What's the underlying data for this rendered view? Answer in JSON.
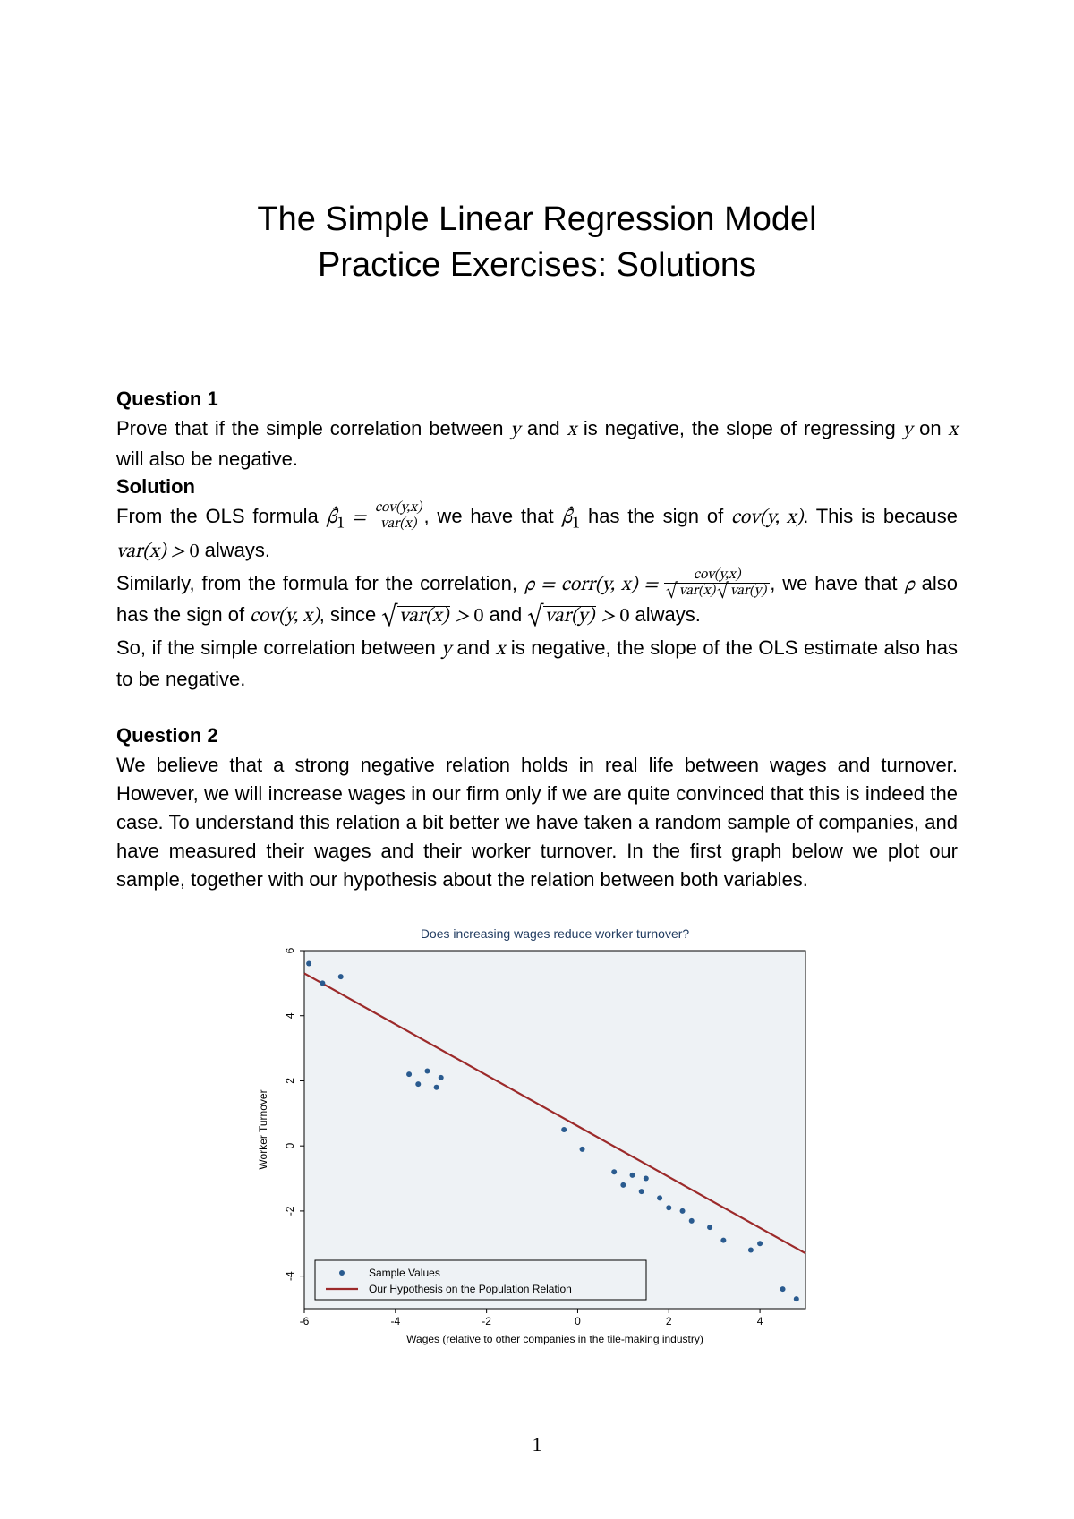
{
  "title_line1": "The Simple Linear Regression Model",
  "title_line2": "Practice Exercises: Solutions",
  "q1": {
    "heading": "Question 1",
    "prompt_a": "Prove that if the simple correlation between ",
    "prompt_b": " and ",
    "prompt_c": " is negative, the slope of regressing ",
    "prompt_d": " on ",
    "prompt_e": " will also be negative.",
    "sol_heading": "Solution",
    "s1a": "From the OLS formula ",
    "s1b": ", we have that ",
    "s1c": " has the sign of ",
    "s1d": ".  This is because ",
    "s1e": " always.",
    "s2a": "Similarly, from the formula for the correlation, ",
    "s2b": ", we have that ",
    "s2c": " also has the sign of ",
    "s2d": ", since ",
    "s2e": " and ",
    "s2f": " always.",
    "s3a": "So, if the simple correlation between ",
    "s3b": " and ",
    "s3c": " is negative, the slope of the OLS estimate also has to be negative."
  },
  "q2": {
    "heading": "Question 2",
    "text": "We believe that a strong negative relation holds in real life between wages and turnover. However, we will increase wages in our firm only if we are quite convinced that this is indeed the case. To understand this relation a bit better we have taken a random sample of companies, and have measured their wages and their worker turnover.  In the first graph below we plot our sample, together with our hypothesis about the relation between both variables."
  },
  "chart": {
    "type": "scatter+line",
    "title": "Does increasing wages reduce worker turnover?",
    "title_fontsize": 14,
    "title_color": "#1f3a5f",
    "xlabel": "Wages (relative to other companies in the tile-making industry)",
    "ylabel": "Worker Turnover",
    "label_fontsize": 12,
    "xlim": [
      -6,
      5
    ],
    "ylim": [
      -5,
      6
    ],
    "xticks": [
      -6,
      -4,
      -2,
      0,
      2,
      4
    ],
    "yticks": [
      -4,
      -2,
      0,
      2,
      4,
      6
    ],
    "plot_bg": "#eef2f5",
    "outer_bg": "#ffffff",
    "border_color": "#000000",
    "point_color": "#2a5b8f",
    "point_radius": 3,
    "line_color": "#9c2a2a",
    "line_width": 2.2,
    "line_start": [
      -6,
      5.3
    ],
    "line_end": [
      5,
      -3.3
    ],
    "points": [
      [
        -5.9,
        5.6
      ],
      [
        -5.6,
        5.0
      ],
      [
        -5.2,
        5.2
      ],
      [
        -3.7,
        2.2
      ],
      [
        -3.5,
        1.9
      ],
      [
        -3.3,
        2.3
      ],
      [
        -3.1,
        1.8
      ],
      [
        -3.0,
        2.1
      ],
      [
        -0.3,
        0.5
      ],
      [
        0.1,
        -0.1
      ],
      [
        0.8,
        -0.8
      ],
      [
        1.0,
        -1.2
      ],
      [
        1.2,
        -0.9
      ],
      [
        1.4,
        -1.4
      ],
      [
        1.5,
        -1.0
      ],
      [
        1.8,
        -1.6
      ],
      [
        2.0,
        -1.9
      ],
      [
        2.3,
        -2.0
      ],
      [
        2.5,
        -2.3
      ],
      [
        2.9,
        -2.5
      ],
      [
        3.2,
        -2.9
      ],
      [
        3.8,
        -3.2
      ],
      [
        4.0,
        -3.0
      ],
      [
        4.5,
        -4.4
      ],
      [
        4.8,
        -4.7
      ]
    ],
    "legend": {
      "items": [
        {
          "marker": "point",
          "label": "Sample Values"
        },
        {
          "marker": "line",
          "label": "Our Hypothesis on the Population Relation"
        }
      ],
      "fontsize": 12,
      "border_color": "#000000",
      "bg": "#eef2f5"
    }
  },
  "page_number": "1"
}
